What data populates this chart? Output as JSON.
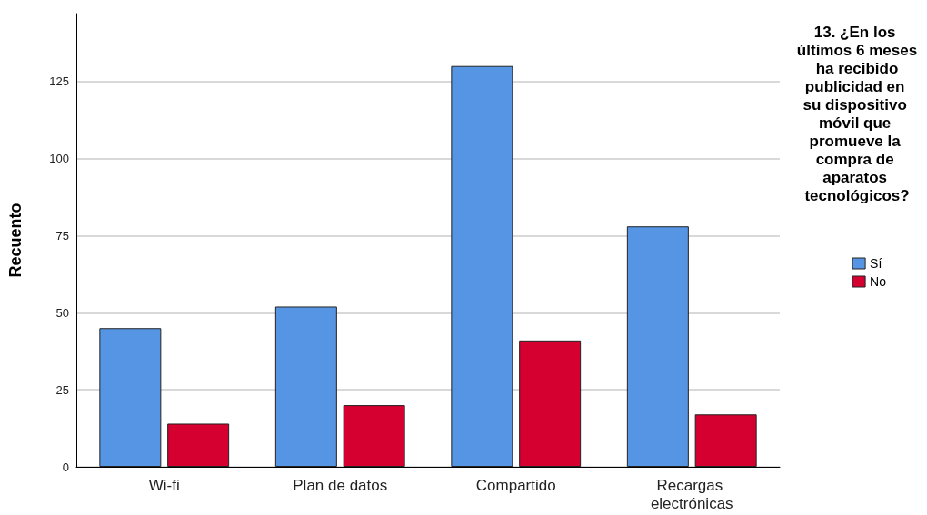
{
  "chart_data": {
    "type": "bar",
    "ylabel": "Recuento",
    "legend_title": "13. ¿En los últimos 6 meses ha recibido publicidad en su dispositivo móvil que promueve la compra de aparatos tecnológicos?",
    "categories": [
      "Wi-fi",
      "Plan de datos",
      "Compartido",
      "Recargas electrónicas"
    ],
    "series": [
      {
        "name": "Sí",
        "color": "#5595e4",
        "values": [
          45,
          52,
          130,
          78
        ]
      },
      {
        "name": "No",
        "color": "#d5002f",
        "values": [
          14,
          20,
          41,
          17
        ]
      }
    ],
    "ylim": [
      0,
      147
    ],
    "yticks": [
      0,
      25,
      50,
      75,
      100,
      125
    ],
    "grid": "y",
    "legend": "right"
  }
}
